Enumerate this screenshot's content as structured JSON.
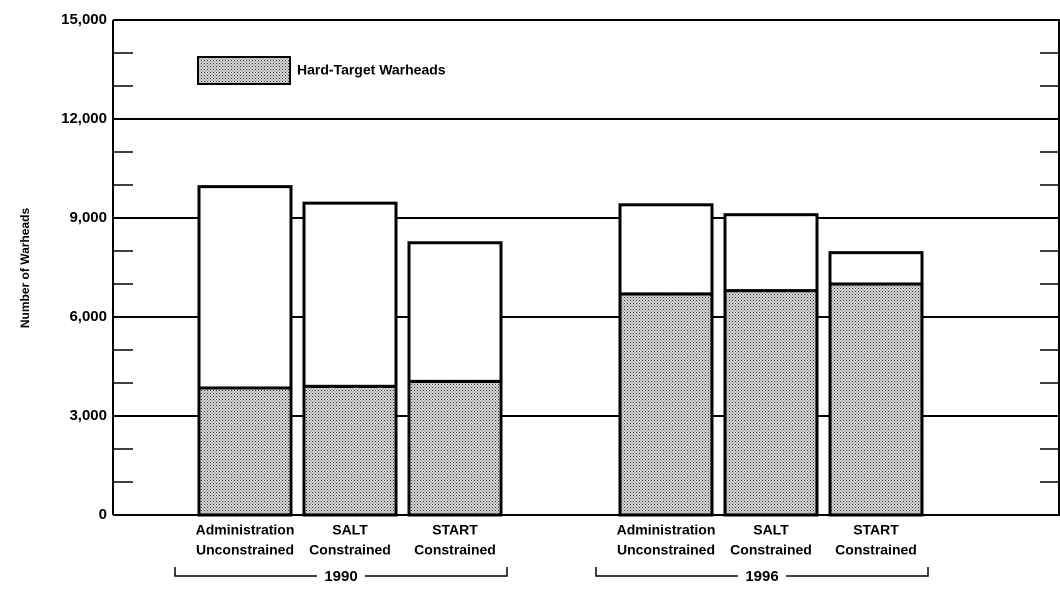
{
  "chart_data": {
    "type": "stacked_bar",
    "y_label": "Number of Warheads",
    "categories": [
      [
        "Administration",
        "Unconstrained"
      ],
      [
        "SALT",
        "Constrained"
      ],
      [
        "START",
        "Constrained"
      ],
      [
        "Administration",
        "Unconstrained"
      ],
      [
        "SALT",
        "Constrained"
      ],
      [
        "START",
        "Constrained"
      ]
    ],
    "groups": [
      "1990",
      "1996"
    ],
    "series": [
      {
        "name": "Hard-Target Warheads",
        "color": "stipple",
        "values": [
          3850,
          3900,
          4050,
          6700,
          6800,
          7000
        ]
      },
      {
        "color": "#ffffff",
        "values": [
          6100,
          5550,
          4200,
          2700,
          2300,
          950
        ]
      }
    ],
    "ylim": [
      0,
      15000
    ],
    "yticks": [
      0,
      {
        "value": 3000,
        "label": "3,000"
      },
      {
        "value": 6000,
        "label": "6,000"
      },
      {
        "value": 9000,
        "label": "9,000"
      },
      {
        "value": 12000,
        "label": "12,000"
      },
      {
        "value": 15000,
        "label": "15,000"
      }
    ],
    "yminor": [
      1000,
      2000,
      4000,
      5000,
      7000,
      8000,
      10000,
      11000,
      13000,
      14000
    ],
    "grid": true,
    "legend": "upper left"
  }
}
